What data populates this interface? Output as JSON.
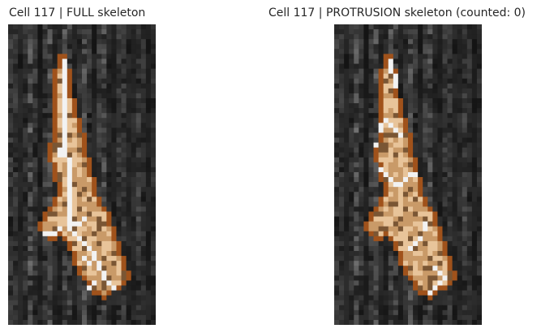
{
  "panels": [
    {
      "id": "full",
      "title": "Cell 117 | FULL skeleton",
      "skeleton": "full",
      "protrusions_counted": null
    },
    {
      "id": "protrusion",
      "title": "Cell 117 | PROTRUSION skeleton (counted: 0)",
      "skeleton": "protrusion",
      "protrusions_counted": 0
    }
  ],
  "colors": {
    "background": "#ffffff",
    "cell_outline": "#a0521b",
    "cell_fill_light": "#e8c49a",
    "cell_fill_mid": "#c99a68",
    "cell_fill_dark": "#7a5634",
    "skeleton": "#f2f2f2",
    "title_text": "#262626"
  },
  "icons": [
    "cell-image",
    "skeleton-overlay"
  ]
}
